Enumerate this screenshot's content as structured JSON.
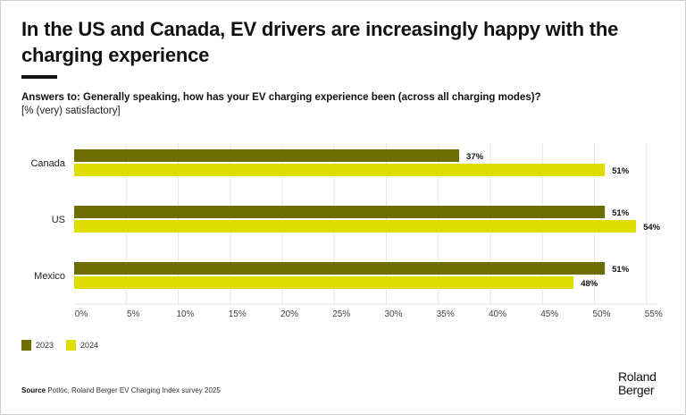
{
  "title": "In the US and Canada, EV drivers are increasingly happy with the charging experience",
  "subtitle": "Answers to: Generally speaking, how has your EV charging experience been (across all charging modes)?",
  "unit_note": "[% (very) satisfactory]",
  "source_label": "Source",
  "source_text": " Potloc, Roland Berger EV Charging Index survey 2025",
  "logo": {
    "line1": "Roland",
    "line2": "Berger"
  },
  "colors": {
    "2023": "#6f6c00",
    "2024": "#dedc00"
  },
  "chart_data": {
    "type": "bar",
    "orientation": "horizontal",
    "title": "In the US and Canada, EV drivers are increasingly happy with the charging experience",
    "xlabel": "",
    "ylabel": "",
    "categories": [
      "Canada",
      "US",
      "Mexico"
    ],
    "series": [
      {
        "name": "2023",
        "values": [
          37,
          51,
          51
        ],
        "labels": [
          "37%",
          "51%",
          "51%"
        ]
      },
      {
        "name": "2024",
        "values": [
          51,
          54,
          48
        ],
        "labels": [
          "51%",
          "54%",
          "48%"
        ]
      }
    ],
    "xlim": [
      0,
      55
    ],
    "xticks": [
      0,
      5,
      10,
      15,
      20,
      25,
      30,
      35,
      40,
      45,
      50,
      55
    ],
    "xtick_labels": [
      "0%",
      "5%",
      "10%",
      "15%",
      "20%",
      "25%",
      "30%",
      "35%",
      "40%",
      "45%",
      "50%",
      "55%"
    ],
    "grid": true,
    "legend": [
      "2023",
      "2024"
    ],
    "legend_position": "bottom-left"
  }
}
